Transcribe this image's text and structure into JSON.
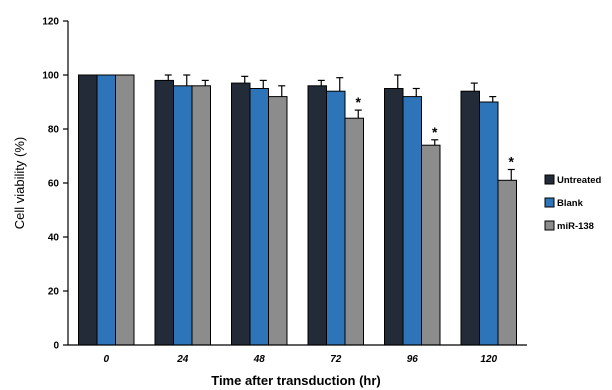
{
  "chart_data": {
    "type": "bar",
    "title": "",
    "xlabel": "Time after transduction (hr)",
    "ylabel": "Cell viability (%)",
    "ylim": [
      0,
      120
    ],
    "yticks": [
      0,
      20,
      40,
      60,
      80,
      100,
      120
    ],
    "categories": [
      "0",
      "24",
      "48",
      "72",
      "96",
      "120"
    ],
    "series": [
      {
        "name": "Untreated",
        "color": "#232b38",
        "values": [
          100,
          98,
          97,
          96,
          95,
          94
        ],
        "errors": [
          0,
          2,
          2.5,
          2,
          5,
          3
        ]
      },
      {
        "name": "Blank",
        "color": "#2e74b8",
        "values": [
          100,
          96,
          95,
          94,
          92,
          90
        ],
        "errors": [
          0,
          4,
          3,
          5,
          3,
          2
        ]
      },
      {
        "name": "miR-138",
        "color": "#8c8c8c",
        "values": [
          100,
          96,
          92,
          84,
          74,
          61
        ],
        "errors": [
          0,
          2,
          4,
          3,
          2,
          4
        ]
      }
    ],
    "annotations": [
      {
        "category": "72",
        "series": "miR-138",
        "text": "*"
      },
      {
        "category": "96",
        "series": "miR-138",
        "text": "*"
      },
      {
        "category": "120",
        "series": "miR-138",
        "text": "*"
      }
    ],
    "legend_position": "right"
  }
}
